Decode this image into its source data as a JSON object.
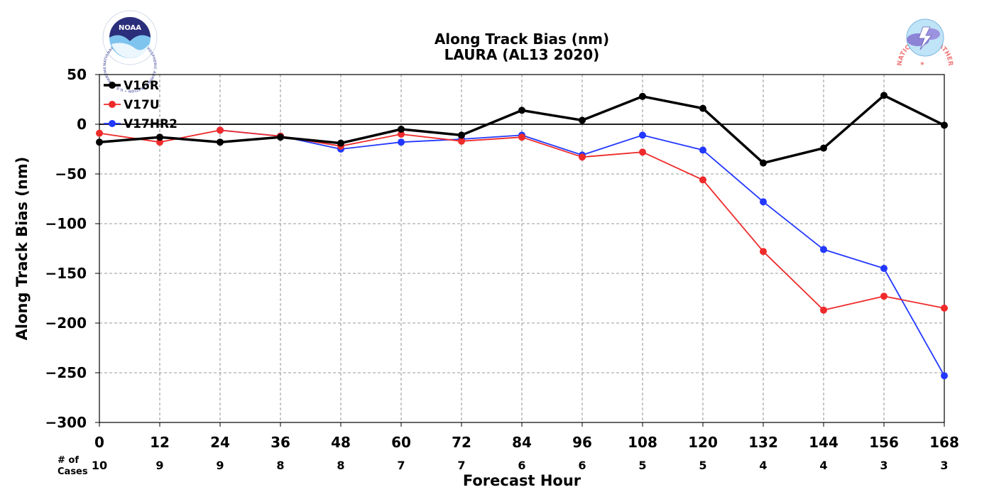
{
  "chart_data": {
    "type": "line",
    "title": "Along Track Bias (nm)",
    "subtitle": "LAURA (AL13 2020)",
    "xlabel": "Forecast Hour",
    "ylabel": "Along Track Bias (nm)",
    "x": [
      0,
      12,
      24,
      36,
      48,
      60,
      72,
      84,
      96,
      108,
      120,
      132,
      144,
      156,
      168
    ],
    "xlim": [
      0,
      168
    ],
    "ylim": [
      -300,
      50
    ],
    "yticks": [
      50,
      0,
      -50,
      -100,
      -150,
      -200,
      -250,
      -300
    ],
    "ytick_labels": [
      "50",
      "0",
      "−50",
      "−100",
      "−150",
      "−200",
      "−250",
      "−300"
    ],
    "grid": true,
    "legend_position": "top-left",
    "cases_label": [
      "# of",
      "Cases"
    ],
    "cases": [
      10,
      9,
      9,
      8,
      8,
      7,
      7,
      6,
      6,
      5,
      5,
      4,
      4,
      3,
      3
    ],
    "series": [
      {
        "name": "V16R",
        "color": "#000000",
        "width": 3.5,
        "values": [
          -18,
          -13,
          -18,
          -13,
          -19,
          -5,
          -11,
          14,
          4,
          28,
          16,
          -39,
          -24,
          29,
          -1
        ]
      },
      {
        "name": "V17U",
        "color": "#ef2a2a",
        "width": 1.8,
        "values": [
          -9,
          -18,
          -6,
          -12,
          -22,
          -10,
          -17,
          -13,
          -33,
          -28,
          -56,
          -128,
          -187,
          -173,
          -185
        ]
      },
      {
        "name": "V17HR2",
        "color": "#2238ff",
        "width": 1.8,
        "values": [
          null,
          null,
          -6,
          -12,
          -25,
          -18,
          -15,
          -11,
          -31,
          -11,
          -26,
          -78,
          -126,
          -145,
          -253
        ]
      }
    ]
  },
  "logos": {
    "left": {
      "name": "NOAA",
      "text": "NOAA",
      "ring_text": "NATIONAL OCEANIC AND ATMOSPHERIC ADMINISTRATION • U.S. DEPARTMENT OF COMMERCE •"
    },
    "right": {
      "name": "National Weather Service",
      "ring_text": "NATIONAL WEATHER SERVICE"
    }
  }
}
